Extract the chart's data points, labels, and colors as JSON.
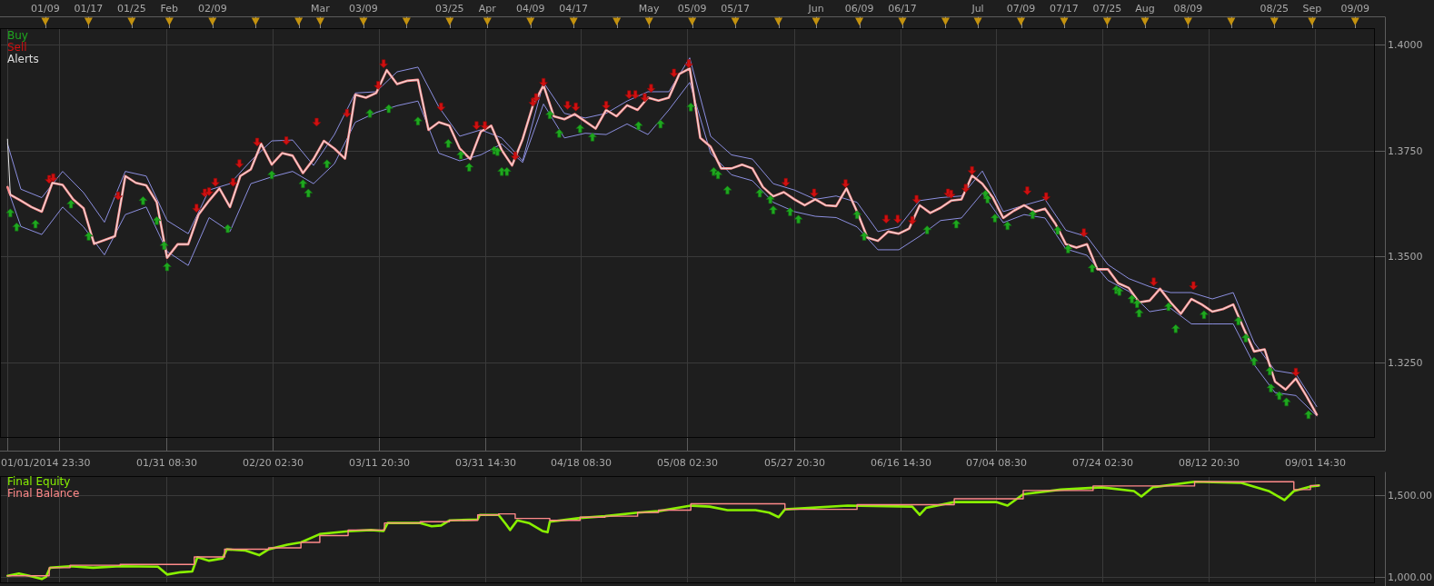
{
  "chart_data": [
    {
      "type": "line",
      "xlim": [
        "2013-12-31T14:00",
        "2014-09-12T16:00"
      ],
      "xticks": [
        {
          "value": "2014-01-01T23:30",
          "label": "01/01/2014 23:30"
        },
        {
          "value": "2014-01-11T14:30",
          "label": null
        },
        {
          "value": "2014-01-31T08:30",
          "label": "01/31 08:30"
        },
        {
          "value": "2014-02-20T02:30",
          "label": "02/20 02:30"
        },
        {
          "value": "2014-03-11T20:30",
          "label": "03/11 20:30"
        },
        {
          "value": "2014-03-31T14:30",
          "label": "03/31 14:30"
        },
        {
          "value": "2014-04-18T08:30",
          "label": "04/18 08:30"
        },
        {
          "value": "2014-05-08T02:30",
          "label": "05/08 02:30"
        },
        {
          "value": "2014-05-27T20:30",
          "label": "05/27 20:30"
        },
        {
          "value": "2014-06-16T14:30",
          "label": "06/16 14:30"
        },
        {
          "value": "2014-07-04T08:30",
          "label": "07/04 08:30"
        },
        {
          "value": "2014-07-24T02:30",
          "label": "07/24 02:30"
        },
        {
          "value": "2014-08-12T20:30",
          "label": "08/12 20:30"
        },
        {
          "value": "2014-09-01T14:30",
          "label": "09/01 14:30"
        }
      ],
      "x2lim": [
        "2013-12-31T14:00",
        "2014-09-12T16:00"
      ],
      "x2ticks": [
        {
          "value": "2014-01-09",
          "label": "01/09"
        },
        {
          "value": "2014-01-17",
          "label": "01/17"
        },
        {
          "value": "2014-01-25",
          "label": "01/25"
        },
        {
          "value": "2014-02-01",
          "label": "Feb"
        },
        {
          "value": "2014-02-09",
          "label": "02/09"
        },
        {
          "value": "2014-02-17",
          "label": null
        },
        {
          "value": "2014-02-25",
          "label": null
        },
        {
          "value": "2014-03-01",
          "label": "Mar"
        },
        {
          "value": "2014-03-09",
          "label": "03/09"
        },
        {
          "value": "2014-03-17",
          "label": null
        },
        {
          "value": "2014-03-25",
          "label": "03/25"
        },
        {
          "value": "2014-04-01",
          "label": "Apr"
        },
        {
          "value": "2014-04-09",
          "label": "04/09"
        },
        {
          "value": "2014-04-17",
          "label": "04/17"
        },
        {
          "value": "2014-04-25",
          "label": null
        },
        {
          "value": "2014-05-01",
          "label": "May"
        },
        {
          "value": "2014-05-09",
          "label": "05/09"
        },
        {
          "value": "2014-05-17",
          "label": "05/17"
        },
        {
          "value": "2014-05-25",
          "label": null
        },
        {
          "value": "2014-06-01",
          "label": "Jun"
        },
        {
          "value": "2014-06-09",
          "label": "06/09"
        },
        {
          "value": "2014-06-17",
          "label": "06/17"
        },
        {
          "value": "2014-06-25",
          "label": null
        },
        {
          "value": "2014-07-01",
          "label": "Jul"
        },
        {
          "value": "2014-07-09",
          "label": "07/09"
        },
        {
          "value": "2014-07-17",
          "label": "07/17"
        },
        {
          "value": "2014-07-25",
          "label": "07/25"
        },
        {
          "value": "2014-08-01",
          "label": "Aug"
        },
        {
          "value": "2014-08-09",
          "label": "08/09"
        },
        {
          "value": "2014-08-17",
          "label": null
        },
        {
          "value": "2014-08-25",
          "label": "08/25"
        },
        {
          "value": "2014-09-01",
          "label": "Sep"
        },
        {
          "value": "2014-09-09",
          "label": "09/09"
        }
      ],
      "ylim": [
        1.3072,
        1.4039
      ],
      "yticks": [
        {
          "value": 1.325,
          "label": "1.3250"
        },
        {
          "value": 1.35,
          "label": "1.3500"
        },
        {
          "value": 1.375,
          "label": "1.3750"
        },
        {
          "value": 1.4,
          "label": "1.4000"
        }
      ],
      "grid": true,
      "legend": "top left",
      "series": [
        {
          "color": "#8c8fe0",
          "x": [
            "2014-01-01T23:30",
            "2014-01-04T11:00",
            "2014-01-08T08:00",
            "2014-01-12T05:00",
            "2014-01-16T02:00",
            "2014-01-19T23:00",
            "2014-01-23T20:00",
            "2014-01-27T17:00",
            "2014-01-31T14:00",
            "2014-02-04T12:00",
            "2014-02-08T09:00",
            "2014-02-12T06:00",
            "2014-02-16T03:00",
            "2014-02-20T00:00",
            "2014-02-23T21:00",
            "2014-02-27T18:00",
            "2014-03-03T15:00",
            "2014-03-07T12:00",
            "2014-03-11T09:00",
            "2014-03-15T06:00",
            "2014-03-19T03:00",
            "2014-03-23T00:00",
            "2014-03-26T21:00",
            "2014-03-30T19:00",
            "2014-04-03T16:00",
            "2014-04-07T13:00",
            "2014-04-11T10:00",
            "2014-04-15T07:00",
            "2014-04-19T04:00",
            "2014-04-23T01:00",
            "2014-04-26T22:00",
            "2014-04-30T19:00",
            "2014-05-04T16:00",
            "2014-05-08T13:00",
            "2014-05-12T10:00",
            "2014-05-16T07:00",
            "2014-05-20T04:00",
            "2014-05-24T01:00",
            "2014-05-27T23:00",
            "2014-05-31T20:00",
            "2014-06-04T17:00",
            "2014-06-08T14:00",
            "2014-06-12T11:00",
            "2014-06-16T08:00",
            "2014-06-20T05:00",
            "2014-06-24T02:00",
            "2014-06-27T23:00",
            "2014-07-01T20:00",
            "2014-07-05T17:00",
            "2014-07-09T14:00",
            "2014-07-13T11:00",
            "2014-07-17T08:00",
            "2014-07-21T06:00",
            "2014-07-25T03:00",
            "2014-07-29T00:00",
            "2014-08-01T21:00",
            "2014-08-05T18:00",
            "2014-08-09T15:00",
            "2014-08-13T12:00",
            "2014-08-17T09:00",
            "2014-08-21T06:00",
            "2014-08-25T03:00",
            "2014-08-29T00:00",
            "2014-09-01T21:00"
          ],
          "values": [
            1.3766,
            1.3659,
            1.3639,
            1.3701,
            1.3651,
            1.3581,
            1.3701,
            1.369,
            1.3585,
            1.3554,
            1.3657,
            1.3672,
            1.3726,
            1.3773,
            1.3775,
            1.3715,
            1.3788,
            1.3886,
            1.3889,
            1.3936,
            1.3947,
            1.3853,
            1.3784,
            1.3799,
            1.378,
            1.3726,
            1.3911,
            1.3838,
            1.3827,
            1.3838,
            1.3867,
            1.3889,
            1.3889,
            1.3969,
            1.3784,
            1.374,
            1.373,
            1.3672,
            1.3657,
            1.3635,
            1.3643,
            1.3628,
            1.3559,
            1.357,
            1.3632,
            1.3639,
            1.3643,
            1.3702,
            1.3606,
            1.3621,
            1.3635,
            1.3562,
            1.3547,
            1.3481,
            1.3448,
            1.3429,
            1.3415,
            1.3415,
            1.34,
            1.3415,
            1.3297,
            1.3231,
            1.3223,
            1.3146
          ]
        },
        {
          "color": "#8c8fe0",
          "x": [
            "2014-01-01T23:30",
            "2014-01-04T11:00",
            "2014-01-08T08:00",
            "2014-01-12T05:00",
            "2014-01-16T02:00",
            "2014-01-19T23:00",
            "2014-01-23T20:00",
            "2014-01-27T17:00",
            "2014-01-31T14:00",
            "2014-02-04T12:00",
            "2014-02-08T09:00",
            "2014-02-12T06:00",
            "2014-02-16T03:00",
            "2014-02-20T00:00",
            "2014-02-23T21:00",
            "2014-02-27T18:00",
            "2014-03-03T15:00",
            "2014-03-07T12:00",
            "2014-03-11T09:00",
            "2014-03-15T06:00",
            "2014-03-19T03:00",
            "2014-03-23T00:00",
            "2014-03-26T21:00",
            "2014-03-30T19:00",
            "2014-04-03T16:00",
            "2014-04-07T13:00",
            "2014-04-11T10:00",
            "2014-04-15T07:00",
            "2014-04-19T04:00",
            "2014-04-23T01:00",
            "2014-04-26T22:00",
            "2014-04-30T19:00",
            "2014-05-04T16:00",
            "2014-05-08T13:00",
            "2014-05-12T10:00",
            "2014-05-16T07:00",
            "2014-05-20T04:00",
            "2014-05-24T01:00",
            "2014-05-27T23:00",
            "2014-05-31T20:00",
            "2014-06-04T17:00",
            "2014-06-08T14:00",
            "2014-06-12T11:00",
            "2014-06-16T08:00",
            "2014-06-20T05:00",
            "2014-06-24T02:00",
            "2014-06-27T23:00",
            "2014-07-01T20:00",
            "2014-07-05T17:00",
            "2014-07-09T14:00",
            "2014-07-13T11:00",
            "2014-07-17T08:00",
            "2014-07-21T06:00",
            "2014-07-25T03:00",
            "2014-07-29T00:00",
            "2014-08-01T21:00",
            "2014-08-05T18:00",
            "2014-08-09T15:00",
            "2014-08-13T12:00",
            "2014-08-17T09:00",
            "2014-08-21T06:00",
            "2014-08-25T03:00",
            "2014-08-29T00:00",
            "2014-09-01T21:00"
          ],
          "values": [
            1.3661,
            1.3571,
            1.3552,
            1.3617,
            1.357,
            1.3504,
            1.3599,
            1.3617,
            1.3512,
            1.3479,
            1.3592,
            1.3559,
            1.3672,
            1.3688,
            1.3701,
            1.3672,
            1.3719,
            1.3817,
            1.384,
            1.3856,
            1.3867,
            1.3744,
            1.3726,
            1.374,
            1.3766,
            1.3722,
            1.386,
            1.378,
            1.3791,
            1.3788,
            1.3813,
            1.3788,
            1.3846,
            1.3911,
            1.3744,
            1.3693,
            1.3679,
            1.3628,
            1.3606,
            1.3595,
            1.3592,
            1.357,
            1.3516,
            1.3516,
            1.3548,
            1.3585,
            1.3591,
            1.365,
            1.358,
            1.3599,
            1.3591,
            1.3518,
            1.3503,
            1.3444,
            1.3418,
            1.337,
            1.3378,
            1.3341,
            1.3341,
            1.3341,
            1.3245,
            1.3179,
            1.3172,
            1.3124
          ]
        },
        {
          "color": "#ff8c8c",
          "x": [
            "2014-01-01T23:30",
            "2014-01-02T12:00",
            "2014-01-04T11:00",
            "2014-01-06T10:00",
            "2014-01-08T08:00",
            "2014-01-10T07:00",
            "2014-01-12T05:00",
            "2014-01-14T04:00",
            "2014-01-16T02:00",
            "2014-01-18T01:00",
            "2014-01-19T23:00",
            "2014-01-21T22:00",
            "2014-01-23T20:00",
            "2014-01-25T19:00",
            "2014-01-27T17:00",
            "2014-01-29T16:00",
            "2014-01-31T14:00",
            "2014-02-02T13:00",
            "2014-02-04T12:00",
            "2014-02-06T10:00",
            "2014-02-08T09:00",
            "2014-02-10T07:00",
            "2014-02-12T06:00",
            "2014-02-14T04:00",
            "2014-02-16T03:00",
            "2014-02-18T01:00",
            "2014-02-20T00:00",
            "2014-02-21T22:00",
            "2014-02-23T21:00",
            "2014-02-25T19:00",
            "2014-02-27T18:00",
            "2014-03-01T16:00",
            "2014-03-03T15:00",
            "2014-03-05T14:00",
            "2014-03-07T12:00",
            "2014-03-09T11:00",
            "2014-03-11T09:00",
            "2014-03-13T08:00",
            "2014-03-15T06:00",
            "2014-03-17T05:00",
            "2014-03-19T03:00",
            "2014-03-21T02:00",
            "2014-03-23T00:00",
            "2014-03-24T23:00",
            "2014-03-26T21:00",
            "2014-03-28T20:00",
            "2014-03-30T19:00",
            "2014-04-01T17:00",
            "2014-04-03T16:00",
            "2014-04-05T14:00",
            "2014-04-07T13:00",
            "2014-04-09T11:00",
            "2014-04-11T10:00",
            "2014-04-13T08:00",
            "2014-04-15T07:00",
            "2014-04-17T05:00",
            "2014-04-19T04:00",
            "2014-04-21T02:00",
            "2014-04-23T01:00",
            "2014-04-24T23:00",
            "2014-04-26T22:00",
            "2014-04-28T21:00",
            "2014-04-30T19:00",
            "2014-05-02T18:00",
            "2014-05-04T16:00",
            "2014-05-06T15:00",
            "2014-05-08T13:00",
            "2014-05-10T12:00",
            "2014-05-12T10:00",
            "2014-05-14T09:00",
            "2014-05-16T07:00",
            "2014-05-18T06:00",
            "2014-05-20T04:00",
            "2014-05-22T03:00",
            "2014-05-24T01:00",
            "2014-05-26T00:00",
            "2014-05-27T23:00",
            "2014-05-29T21:00",
            "2014-05-31T20:00",
            "2014-06-02T18:00",
            "2014-06-04T17:00",
            "2014-06-06T15:00",
            "2014-06-08T14:00",
            "2014-06-10T12:00",
            "2014-06-12T11:00",
            "2014-06-14T09:00",
            "2014-06-16T08:00",
            "2014-06-18T06:00",
            "2014-06-20T05:00",
            "2014-06-22T04:00",
            "2014-06-24T02:00",
            "2014-06-26T01:00",
            "2014-06-27T23:00",
            "2014-06-29T22:00",
            "2014-07-01T20:00",
            "2014-07-03T19:00",
            "2014-07-05T17:00",
            "2014-07-07T16:00",
            "2014-07-09T14:00",
            "2014-07-11T13:00",
            "2014-07-13T11:00",
            "2014-07-15T10:00",
            "2014-07-17T08:00",
            "2014-07-19T07:00",
            "2014-07-21T06:00",
            "2014-07-23T04:00",
            "2014-07-25T03:00",
            "2014-07-27T01:00",
            "2014-07-29T00:00",
            "2014-07-30T22:00",
            "2014-08-01T21:00",
            "2014-08-03T19:00",
            "2014-08-05T18:00",
            "2014-08-07T16:00",
            "2014-08-09T15:00",
            "2014-08-11T13:00",
            "2014-08-13T12:00",
            "2014-08-15T11:00",
            "2014-08-17T09:00",
            "2014-08-19T08:00",
            "2014-08-21T06:00",
            "2014-08-23T05:00",
            "2014-08-25T03:00",
            "2014-08-27T02:00",
            "2014-08-29T00:00",
            "2014-08-30T23:00",
            "2014-09-01T21:00"
          ],
          "values": [
            1.3664,
            1.3646,
            1.3632,
            1.3617,
            1.3606,
            1.3674,
            1.3669,
            1.3635,
            1.3614,
            1.353,
            1.3539,
            1.3548,
            1.369,
            1.3674,
            1.3668,
            1.3628,
            1.3497,
            1.3529,
            1.3529,
            1.3599,
            1.3632,
            1.3661,
            1.3617,
            1.369,
            1.3706,
            1.3766,
            1.3717,
            1.3744,
            1.3738,
            1.3697,
            1.373,
            1.3773,
            1.3755,
            1.3731,
            1.3882,
            1.3875,
            1.3886,
            1.394,
            1.3907,
            1.3915,
            1.3917,
            1.3799,
            1.3817,
            1.3809,
            1.3755,
            1.373,
            1.3795,
            1.3809,
            1.3751,
            1.3715,
            1.3777,
            1.3857,
            1.3904,
            1.3831,
            1.3824,
            1.3836,
            1.3819,
            1.3802,
            1.3846,
            1.3831,
            1.3857,
            1.3846,
            1.3875,
            1.3868,
            1.3875,
            1.3931,
            1.3944,
            1.378,
            1.3759,
            1.3708,
            1.3708,
            1.3717,
            1.3708,
            1.3664,
            1.3642,
            1.3652,
            1.3635,
            1.3621,
            1.3635,
            1.3621,
            1.3619,
            1.3661,
            1.3606,
            1.3545,
            1.3537,
            1.3559,
            1.3554,
            1.3566,
            1.3621,
            1.3603,
            1.3615,
            1.3632,
            1.3635,
            1.3691,
            1.3672,
            1.3639,
            1.3591,
            1.3608,
            1.3621,
            1.3606,
            1.3613,
            1.3577,
            1.3529,
            1.3521,
            1.3529,
            1.347,
            1.347,
            1.3437,
            1.3426,
            1.3392,
            1.3396,
            1.3424,
            1.3392,
            1.3365,
            1.34,
            1.3387,
            1.337,
            1.3376,
            1.3387,
            1.333,
            1.3276,
            1.3281,
            1.3205,
            1.3186,
            1.3212,
            1.3171,
            1.3127
          ]
        },
        {
          "color": "#e6e6e6",
          "x": [
            "2014-01-01T23:30",
            "2014-01-02T12:00",
            "2014-01-04T11:00",
            "2014-01-06T10:00",
            "2014-01-08T08:00",
            "2014-01-10T07:00",
            "2014-01-12T05:00",
            "2014-01-14T04:00",
            "2014-01-16T02:00",
            "2014-01-18T01:00",
            "2014-01-19T23:00",
            "2014-01-21T22:00",
            "2014-01-23T20:00",
            "2014-01-25T19:00",
            "2014-01-27T17:00",
            "2014-01-29T16:00",
            "2014-01-31T14:00",
            "2014-02-02T13:00",
            "2014-02-04T12:00",
            "2014-02-06T10:00",
            "2014-02-08T09:00",
            "2014-02-10T07:00",
            "2014-02-12T06:00",
            "2014-02-14T04:00",
            "2014-02-16T03:00",
            "2014-02-18T01:00",
            "2014-02-20T00:00",
            "2014-02-21T22:00",
            "2014-02-23T21:00",
            "2014-02-25T19:00",
            "2014-02-27T18:00",
            "2014-03-01T16:00",
            "2014-03-03T15:00",
            "2014-03-05T14:00",
            "2014-03-07T12:00",
            "2014-03-09T11:00",
            "2014-03-11T09:00",
            "2014-03-13T08:00",
            "2014-03-15T06:00",
            "2014-03-17T05:00",
            "2014-03-19T03:00",
            "2014-03-21T02:00",
            "2014-03-23T00:00",
            "2014-03-24T23:00",
            "2014-03-26T21:00",
            "2014-03-28T20:00",
            "2014-03-30T19:00",
            "2014-04-01T17:00",
            "2014-04-03T16:00",
            "2014-04-05T14:00",
            "2014-04-07T13:00",
            "2014-04-09T11:00",
            "2014-04-11T10:00",
            "2014-04-13T08:00",
            "2014-04-15T07:00",
            "2014-04-17T05:00",
            "2014-04-19T04:00",
            "2014-04-21T02:00",
            "2014-04-23T01:00",
            "2014-04-24T23:00",
            "2014-04-26T22:00",
            "2014-04-28T21:00",
            "2014-04-30T19:00",
            "2014-05-02T18:00",
            "2014-05-04T16:00",
            "2014-05-06T15:00",
            "2014-05-08T13:00",
            "2014-05-10T12:00",
            "2014-05-12T10:00",
            "2014-05-14T09:00",
            "2014-05-16T07:00",
            "2014-05-18T06:00",
            "2014-05-20T04:00",
            "2014-05-22T03:00",
            "2014-05-24T01:00",
            "2014-05-26T00:00",
            "2014-05-27T23:00",
            "2014-05-29T21:00",
            "2014-05-31T20:00",
            "2014-06-02T18:00",
            "2014-06-04T17:00",
            "2014-06-06T15:00",
            "2014-06-08T14:00",
            "2014-06-10T12:00",
            "2014-06-12T11:00",
            "2014-06-14T09:00",
            "2014-06-16T08:00",
            "2014-06-18T06:00",
            "2014-06-20T05:00",
            "2014-06-22T04:00",
            "2014-06-24T02:00",
            "2014-06-26T01:00",
            "2014-06-27T23:00",
            "2014-06-29T22:00",
            "2014-07-01T20:00",
            "2014-07-03T19:00",
            "2014-07-05T17:00",
            "2014-07-07T16:00",
            "2014-07-09T14:00",
            "2014-07-11T13:00",
            "2014-07-13T11:00",
            "2014-07-15T10:00",
            "2014-07-17T08:00",
            "2014-07-19T07:00",
            "2014-07-21T06:00",
            "2014-07-23T04:00",
            "2014-07-25T03:00",
            "2014-07-27T01:00",
            "2014-07-29T00:00",
            "2014-07-30T22:00",
            "2014-08-01T21:00",
            "2014-08-03T19:00",
            "2014-08-05T18:00",
            "2014-08-07T16:00",
            "2014-08-09T15:00",
            "2014-08-11T13:00",
            "2014-08-13T12:00",
            "2014-08-15T11:00",
            "2014-08-17T09:00",
            "2014-08-19T08:00",
            "2014-08-21T06:00",
            "2014-08-23T05:00",
            "2014-08-25T03:00",
            "2014-08-27T02:00",
            "2014-08-29T00:00",
            "2014-08-30T23:00",
            "2014-09-01T21:00"
          ],
          "values": [
            1.3777,
            1.3646,
            1.3632,
            1.3617,
            1.3606,
            1.3674,
            1.3669,
            1.3635,
            1.3614,
            1.353,
            1.3539,
            1.3548,
            1.369,
            1.3674,
            1.3668,
            1.3628,
            1.3497,
            1.3529,
            1.3529,
            1.3599,
            1.3632,
            1.3661,
            1.3617,
            1.369,
            1.3706,
            1.3766,
            1.3717,
            1.3744,
            1.3738,
            1.3697,
            1.373,
            1.3773,
            1.3755,
            1.3731,
            1.3882,
            1.3875,
            1.3886,
            1.394,
            1.3907,
            1.3915,
            1.3917,
            1.3799,
            1.3817,
            1.3809,
            1.3755,
            1.373,
            1.3795,
            1.3809,
            1.3751,
            1.3715,
            1.3777,
            1.3857,
            1.3904,
            1.3831,
            1.3824,
            1.3836,
            1.3819,
            1.3802,
            1.3846,
            1.3831,
            1.3857,
            1.3846,
            1.3875,
            1.3868,
            1.3875,
            1.3931,
            1.3944,
            1.378,
            1.3759,
            1.3708,
            1.3708,
            1.3717,
            1.3708,
            1.3664,
            1.3642,
            1.3652,
            1.3635,
            1.3621,
            1.3635,
            1.3621,
            1.3619,
            1.3661,
            1.3606,
            1.3545,
            1.3537,
            1.3559,
            1.3554,
            1.3566,
            1.3621,
            1.3603,
            1.3615,
            1.3632,
            1.3635,
            1.3691,
            1.3672,
            1.3639,
            1.3591,
            1.3608,
            1.3621,
            1.3606,
            1.3613,
            1.3577,
            1.3529,
            1.3521,
            1.3529,
            1.347,
            1.347,
            1.3437,
            1.3426,
            1.3392,
            1.3396,
            1.3424,
            1.3392,
            1.3365,
            1.34,
            1.3387,
            1.337,
            1.3376,
            1.3387,
            1.333,
            1.3276,
            1.3281,
            1.3205,
            1.3186,
            1.3212,
            1.3171,
            1.3127
          ]
        },
        {
          "name": "Buy",
          "type": "scatter",
          "marker": "triangle",
          "color": "#1fa81f",
          "x": [
            "2014-01-02T12:00",
            "2014-01-03T16:00",
            "2014-01-07T04:00",
            "2014-01-13T18:00",
            "2014-01-17T01:00",
            "2014-01-27T03:00",
            "2014-01-29T16:00",
            "2014-01-31T01:00",
            "2014-01-31T14:00",
            "2014-02-11T20:00",
            "2014-02-20T00:00",
            "2014-02-25T19:00",
            "2014-02-26T19:00",
            "2014-03-02T06:00",
            "2014-03-10T05:00",
            "2014-03-13T17:00",
            "2014-03-19T03:00",
            "2014-03-24T18:00",
            "2014-03-27T02:00",
            "2014-03-28T15:00",
            "2014-04-02T07:00",
            "2014-04-02T21:00",
            "2014-04-03T16:00",
            "2014-04-04T15:00",
            "2014-04-12T14:00",
            "2014-04-14T08:00",
            "2014-04-18T05:00",
            "2014-04-20T12:00",
            "2014-04-29T01:00",
            "2014-05-03T03:00",
            "2014-05-08T18:00",
            "2014-05-13T00:00",
            "2014-05-13T19:00",
            "2014-05-15T13:00",
            "2014-05-21T13:00",
            "2014-05-23T12:00",
            "2014-05-24T01:00",
            "2014-05-27T04:00",
            "2014-05-28T17:00",
            "2014-06-08T14:00",
            "2014-06-09T22:00",
            "2014-06-21T14:00",
            "2014-06-27T00:00",
            "2014-07-02T10:00",
            "2014-07-02T19:00",
            "2014-07-04T04:00",
            "2014-07-06T12:00",
            "2014-07-11T04:00",
            "2014-07-15T19:00",
            "2014-07-17T18:00",
            "2014-07-22T05:00",
            "2014-07-26T16:00",
            "2014-07-27T06:00",
            "2014-07-29T14:00",
            "2014-07-30T13:00",
            "2014-07-30T22:00",
            "2014-08-05T09:00",
            "2014-08-06T17:00",
            "2014-08-11T23:00",
            "2014-08-18T08:00",
            "2014-08-19T17:00",
            "2014-08-21T06:00",
            "2014-08-24T04:00",
            "2014-08-24T09:00",
            "2014-08-25T22:00",
            "2014-08-27T06:00",
            "2014-08-31T08:00"
          ],
          "values": [
            1.3603,
            1.357,
            1.3577,
            1.3624,
            1.3548,
            1.3632,
            1.3585,
            1.3526,
            1.3476,
            1.3566,
            1.3693,
            1.3672,
            1.365,
            1.3719,
            1.3838,
            1.3849,
            1.382,
            1.3767,
            1.374,
            1.3711,
            1.3751,
            1.3748,
            1.3701,
            1.3701,
            1.3835,
            1.3791,
            1.3802,
            1.3782,
            1.3809,
            1.3813,
            1.3853,
            1.3701,
            1.3693,
            1.3657,
            1.365,
            1.3635,
            1.361,
            1.3606,
            1.3588,
            1.3599,
            1.3548,
            1.3563,
            1.3577,
            1.3647,
            1.3636,
            1.3591,
            1.3573,
            1.3599,
            1.3562,
            1.3518,
            1.3473,
            1.3422,
            1.3418,
            1.34,
            1.3389,
            1.3367,
            1.3382,
            1.333,
            1.3363,
            1.3348,
            1.3308,
            1.3253,
            1.323,
            1.319,
            1.3172,
            1.3157,
            1.3127
          ]
        },
        {
          "name": "Sell",
          "type": "scatter",
          "marker": "triangle-down",
          "color": "#d01010",
          "x": [
            "2014-01-09T17:00",
            "2014-01-10T11:00",
            "2014-01-22T12:00",
            "2014-02-06T01:00",
            "2014-02-07T14:00",
            "2014-02-08T09:00",
            "2014-02-09T13:00",
            "2014-02-12T20:00",
            "2014-02-14T00:00",
            "2014-02-17T07:00",
            "2014-02-22T17:00",
            "2014-02-28T08:00",
            "2014-03-05T23:00",
            "2014-03-11T18:00",
            "2014-03-12T18:00",
            "2014-03-23T10:00",
            "2014-03-30T00:00",
            "2014-03-31T13:00",
            "2014-04-06T04:00",
            "2014-04-09T11:00",
            "2014-04-10T01:00",
            "2014-04-11T10:00",
            "2014-04-15T21:00",
            "2014-04-17T10:00",
            "2014-04-23T01:00",
            "2014-04-27T07:00",
            "2014-04-28T11:00",
            "2014-04-30T05:00",
            "2014-05-01T09:00",
            "2014-05-05T15:00",
            "2014-05-08T09:00",
            "2014-05-26T09:00",
            "2014-05-31T15:00",
            "2014-06-06T11:00",
            "2014-06-14T00:00",
            "2014-06-16T03:00",
            "2014-06-18T20:00",
            "2014-06-19T15:00",
            "2014-06-25T11:00",
            "2014-06-26T01:00",
            "2014-06-28T18:00",
            "2014-06-29T22:00",
            "2014-07-10T04:00",
            "2014-07-13T16:00",
            "2014-07-20T16:00",
            "2014-08-02T15:00",
            "2014-08-10T00:00",
            "2014-08-29T00:00"
          ],
          "values": [
            1.3682,
            1.3686,
            1.3643,
            1.3614,
            1.365,
            1.3653,
            1.3675,
            1.3675,
            1.3719,
            1.377,
            1.3773,
            1.3817,
            1.3838,
            1.3904,
            1.3955,
            1.3853,
            1.3809,
            1.3809,
            1.3737,
            1.3864,
            1.3875,
            1.3911,
            1.3857,
            1.3853,
            1.3857,
            1.3882,
            1.3882,
            1.3875,
            1.3897,
            1.3933,
            1.3955,
            1.3675,
            1.365,
            1.3672,
            1.3588,
            1.3588,
            1.3585,
            1.3635,
            1.365,
            1.3647,
            1.3661,
            1.3703,
            1.3655,
            1.3641,
            1.3556,
            1.344,
            1.3431,
            1.3227
          ]
        },
        {
          "name": "Alerts",
          "type": "scatter",
          "marker": "triangle",
          "color": "#dcdcdc"
        }
      ]
    },
    {
      "type": "line",
      "xlim": [
        "2013-12-31T14:00",
        "2014-09-12T16:00"
      ],
      "xticks": [
        "2014-01-01T23:30",
        "2014-01-11T14:30",
        "2014-01-31T08:30",
        "2014-02-20T02:30",
        "2014-03-11T20:30",
        "2014-03-31T14:30",
        "2014-04-18T08:30",
        "2014-05-08T02:30",
        "2014-05-27T20:30",
        "2014-06-16T14:30",
        "2014-07-04T08:30",
        "2014-07-24T02:30",
        "2014-08-12T20:30",
        "2014-09-01T14:30"
      ],
      "tick_labels": "y",
      "ylim": [
        960,
        1620
      ],
      "yticks": [
        {
          "value": 1000,
          "label": "1,000.00"
        },
        {
          "value": 1500,
          "label": "1,500.00"
        }
      ],
      "grid": true,
      "legend": "top left",
      "series": [
        {
          "name": "Final Equity",
          "color": "#88f000",
          "x": [
            "2014-01-01T23:30",
            "2014-01-04T02:00",
            "2014-01-05T20:00",
            "2014-01-08T08:00",
            "2014-01-09T03:00",
            "2014-01-09T21:00",
            "2014-01-13T14:00",
            "2014-01-17T20:00",
            "2014-01-22T21:00",
            "2014-01-29T21:00",
            "2014-01-31T14:00",
            "2014-02-03T03:00",
            "2014-02-05T06:00",
            "2014-02-06T05:00",
            "2014-02-08T09:00",
            "2014-02-10T21:00",
            "2014-02-11T16:00",
            "2014-02-15T03:00",
            "2014-02-17T16:00",
            "2014-02-19T10:00",
            "2014-02-22T22:00",
            "2014-02-25T10:00",
            "2014-02-28T22:00",
            "2014-03-06T04:00",
            "2014-03-10T10:00",
            "2014-03-12T18:00",
            "2014-03-13T12:00",
            "2014-03-19T13:00",
            "2014-03-21T16:00",
            "2014-03-23T10:00",
            "2014-03-24T23:00",
            "2014-03-30T05:00",
            "2014-03-30T14:00",
            "2014-04-03T02:00",
            "2014-04-04T10:00",
            "2014-04-05T05:00",
            "2014-04-06T13:00",
            "2014-04-08T17:00",
            "2014-04-11T05:00",
            "2014-04-12T04:00",
            "2014-04-12T14:00",
            "2014-04-18T05:00",
            "2014-04-22T20:00",
            "2014-04-28T21:00",
            "2014-05-02T18:00",
            "2014-05-08T18:00",
            "2014-05-12T06:00",
            "2014-05-15T13:00",
            "2014-05-20T18:00",
            "2014-05-23T07:00",
            "2014-05-25T01:00",
            "2014-05-26T05:00",
            "2014-06-06T20:00",
            "2014-06-18T20:00",
            "2014-06-20T05:00",
            "2014-06-21T09:00",
            "2014-06-26T15:00",
            "2014-07-04T09:00",
            "2014-07-06T12:00",
            "2014-07-09T10:00",
            "2014-07-16T09:00",
            "2014-07-23T23:00",
            "2014-07-29T23:00",
            "2014-07-31T08:00",
            "2014-08-02T11:00",
            "2014-08-10T05:00",
            "2014-08-18T18:00",
            "2014-08-23T23:00",
            "2014-08-26T21:00",
            "2014-08-28T15:00",
            "2014-08-31T17:00",
            "2014-09-02T07:00"
          ],
          "values": [
            1006,
            1020,
            1008,
            986,
            1000,
            1056,
            1065,
            1056,
            1065,
            1062,
            1014,
            1028,
            1033,
            1121,
            1099,
            1113,
            1169,
            1161,
            1133,
            1169,
            1198,
            1212,
            1263,
            1280,
            1288,
            1282,
            1331,
            1331,
            1311,
            1316,
            1347,
            1353,
            1381,
            1381,
            1325,
            1288,
            1347,
            1331,
            1282,
            1274,
            1339,
            1362,
            1373,
            1395,
            1404,
            1438,
            1432,
            1410,
            1410,
            1395,
            1367,
            1415,
            1438,
            1432,
            1381,
            1424,
            1460,
            1460,
            1438,
            1508,
            1537,
            1551,
            1528,
            1494,
            1551,
            1585,
            1579,
            1528,
            1472,
            1528,
            1556,
            1562
          ]
        },
        {
          "name": "Final Balance",
          "type": "step",
          "color": "#ff8a8a",
          "x": [
            "2014-01-01T23:30",
            "2014-01-09T17:00",
            "2014-01-13T14:00",
            "2014-01-22T21:00",
            "2014-02-05T15:00",
            "2014-02-11T06:00",
            "2014-02-19T10:00",
            "2014-02-25T10:00",
            "2014-02-28T22:00",
            "2014-03-06T04:00",
            "2014-03-12T22:00",
            "2014-03-19T13:00",
            "2014-03-24T23:00",
            "2014-03-30T05:00",
            "2014-04-03T02:00",
            "2014-04-06T04:00",
            "2014-04-12T14:00",
            "2014-04-18T05:00",
            "2014-04-22T20:00",
            "2014-04-28T21:00",
            "2014-05-02T18:00",
            "2014-05-08T18:00",
            "2014-05-26T05:00",
            "2014-06-08T14:00",
            "2014-06-26T15:00",
            "2014-07-09T10:00",
            "2014-07-22T09:00",
            "2014-08-10T05:00",
            "2014-08-28T15:00",
            "2014-08-31T17:00",
            "2014-09-02T07:00"
          ],
          "values": [
            1006,
            1056,
            1071,
            1076,
            1122,
            1170,
            1178,
            1212,
            1254,
            1288,
            1331,
            1339,
            1347,
            1381,
            1387,
            1359,
            1347,
            1367,
            1373,
            1396,
            1410,
            1449,
            1415,
            1444,
            1480,
            1531,
            1559,
            1585,
            1537,
            1562,
            1562
          ]
        }
      ]
    }
  ]
}
